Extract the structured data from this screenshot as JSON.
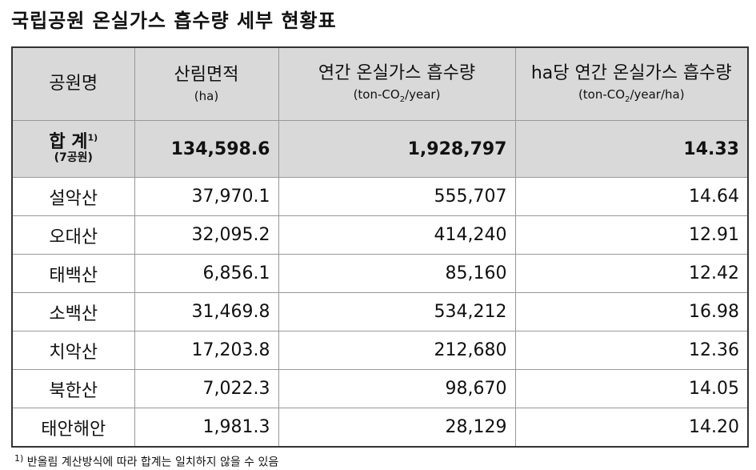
{
  "title": "국립공원 온실가스 흡수량 세부 현황표",
  "table": {
    "header": [
      {
        "label": "공원명"
      },
      {
        "label": "산림면적",
        "unit_parts": [
          "(ha)"
        ]
      },
      {
        "label": "연간 온실가스 흡수량",
        "unit_parts": [
          "(ton-CO",
          "2",
          "/year)"
        ]
      },
      {
        "label": "ha당 연간 온실가스 흡수량",
        "unit_parts": [
          "(ton-CO",
          "2",
          "/year/ha)"
        ]
      }
    ],
    "total": {
      "name": "합 계",
      "note_mark": "1)",
      "sub": "(7공원)",
      "values": [
        "134,598.6",
        "1,928,797",
        "14.33"
      ]
    },
    "rows": [
      [
        "설악산",
        "37,970.1",
        "555,707",
        "14.64"
      ],
      [
        "오대산",
        "32,095.2",
        "414,240",
        "12.91"
      ],
      [
        "태백산",
        "6,856.1",
        "85,160",
        "12.42"
      ],
      [
        "소백산",
        "31,469.8",
        "534,212",
        "16.98"
      ],
      [
        "치악산",
        "17,203.8",
        "212,680",
        "12.36"
      ],
      [
        "북한산",
        "7,022.3",
        "98,670",
        "14.05"
      ],
      [
        "태안해안",
        "1,981.3",
        "28,129",
        "14.20"
      ]
    ]
  },
  "footnote": {
    "mark": "1)",
    "text": "반올림 계산방식에 따라 합계는 일치하지 않을 수 있음"
  }
}
